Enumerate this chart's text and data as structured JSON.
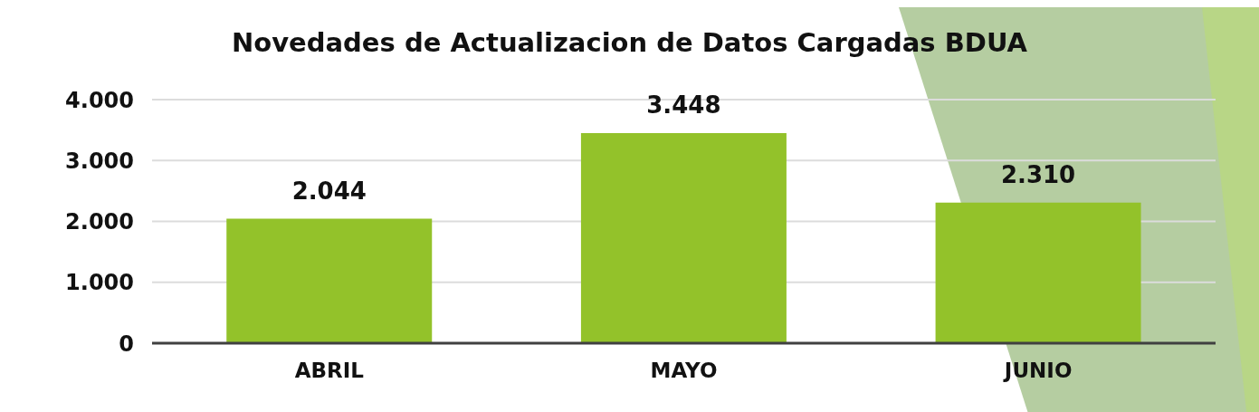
{
  "chart_data": {
    "type": "bar",
    "title": "Novedades de Actualizacion de Datos Cargadas BDUA",
    "categories": [
      "ABRIL",
      "MAYO",
      "JUNIO"
    ],
    "values": [
      2044,
      3448,
      2310
    ],
    "color": "#93c22a",
    "value_labels": [
      "2.044",
      "3.448",
      "2.310"
    ],
    "ylim": [
      0,
      4000
    ],
    "yticks": [
      0,
      {
        "value": 1000,
        "label": "1.000"
      },
      {
        "value": 2000,
        "label": "2.000"
      },
      {
        "value": 3000,
        "label": "3.000"
      },
      {
        "value": 4000,
        "label": "4.000"
      }
    ],
    "grid": "y"
  }
}
